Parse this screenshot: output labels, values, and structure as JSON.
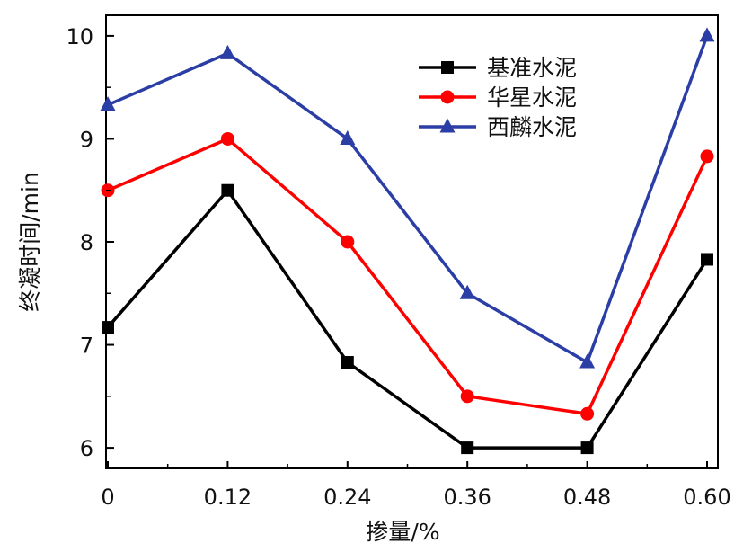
{
  "chart_data": {
    "type": "line",
    "title": "",
    "xlabel": "掺量/%",
    "ylabel": "终凝时间/min",
    "x": [
      0,
      0.12,
      0.24,
      0.36,
      0.48,
      0.6
    ],
    "x_tick_labels": [
      "0",
      "0.12",
      "0.24",
      "0.36",
      "0.48",
      "0.60"
    ],
    "xlim": [
      0,
      0.6
    ],
    "ylim": [
      5.8,
      10.2
    ],
    "y_ticks": [
      6,
      7,
      8,
      9,
      10
    ],
    "y_tick_labels": [
      "6",
      "7",
      "8",
      "9",
      "10"
    ],
    "grid": false,
    "legend_position": "top-right",
    "series": [
      {
        "name": "基准水泥",
        "color": "#000000",
        "marker": "square",
        "values": [
          7.17,
          8.5,
          6.83,
          6.0,
          6.0,
          7.83
        ]
      },
      {
        "name": "华星水泥",
        "color": "#ff0000",
        "marker": "circle",
        "values": [
          8.5,
          9.0,
          8.0,
          6.5,
          6.33,
          8.83
        ]
      },
      {
        "name": "西麟水泥",
        "color": "#2b3ea6",
        "marker": "triangle",
        "values": [
          9.33,
          9.83,
          9.0,
          7.5,
          6.83,
          10.0
        ]
      }
    ]
  }
}
